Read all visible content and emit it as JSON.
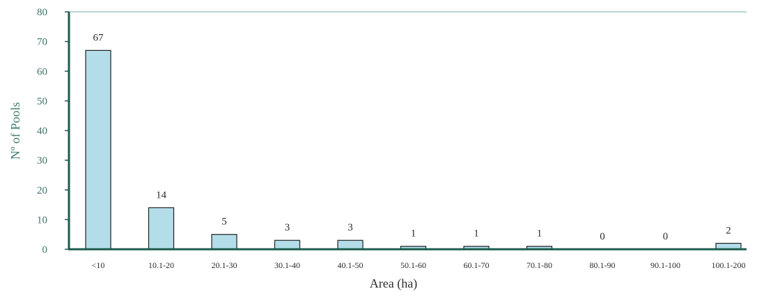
{
  "chart_data": {
    "type": "bar",
    "categories": [
      "<10",
      "10.1-20",
      "20.1-30",
      "30.1-40",
      "40.1-50",
      "50.1-60",
      "60.1-70",
      "70.1-80",
      "80.1-90",
      "90.1-100",
      "100.1-200"
    ],
    "values": [
      67,
      14,
      5,
      3,
      3,
      1,
      1,
      1,
      0,
      0,
      2
    ],
    "data_labels": [
      "67",
      "14",
      "5",
      "3",
      "3",
      "1",
      "1",
      "1",
      "0",
      "0",
      "2"
    ],
    "title": "",
    "xlabel": "Area (ha)",
    "ylabel": "Nº of Pools",
    "ylim": [
      0,
      80
    ],
    "yticks": [
      0,
      10,
      20,
      30,
      40,
      50,
      60,
      70,
      80
    ],
    "grid": false,
    "legend": "none",
    "colors": {
      "bar_fill": "#b3dde9",
      "bar_stroke": "#1f1f1f",
      "axis": "#1c5a4f",
      "frame_top": "#9fc9c4",
      "tick_text": "#3f6f6a",
      "ylabel_text": "#3f7c72"
    }
  }
}
